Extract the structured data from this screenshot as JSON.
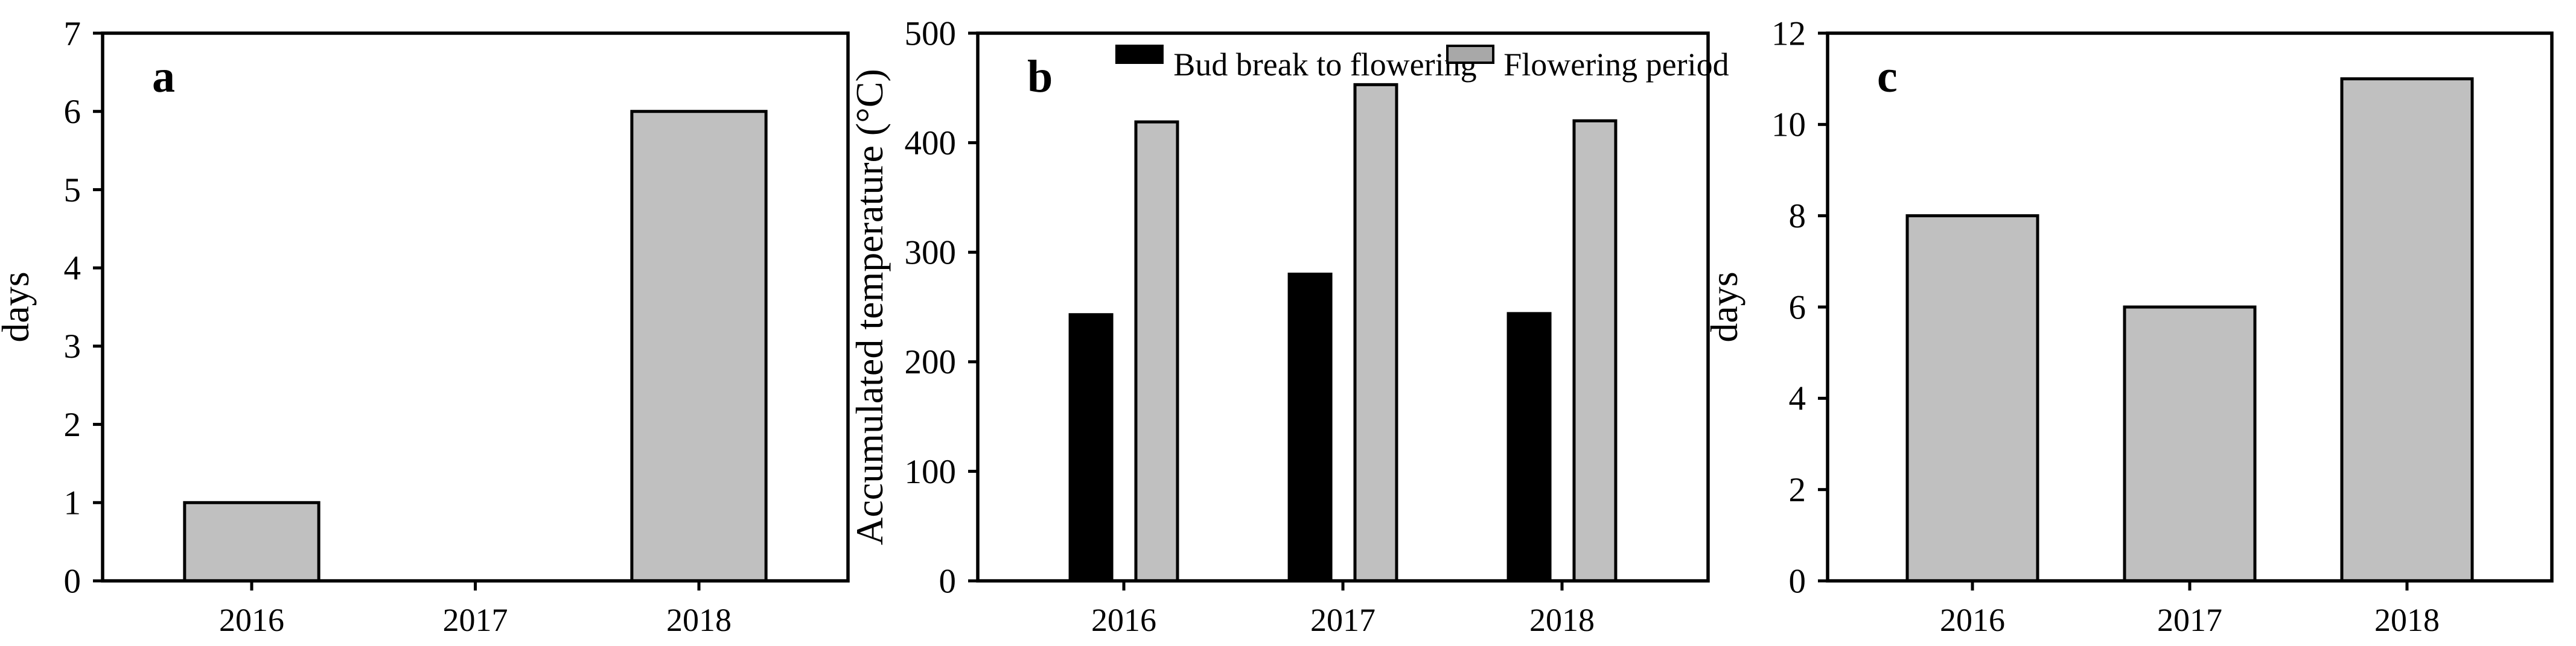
{
  "figure": {
    "background": "#ffffff",
    "frame_color": "#000000",
    "bar_gray": "#c0c0c0",
    "bar_black": "#000000",
    "legend_swatch_gray": "#a8a8a8"
  },
  "chart_data": [
    {
      "type": "bar",
      "panel_label": "a",
      "title": "",
      "xlabel": "",
      "ylabel": "days",
      "ylim": [
        0,
        7
      ],
      "ytick_step": 1,
      "grid": false,
      "categories": [
        "2016",
        "2017",
        "2018"
      ],
      "values": [
        1,
        0,
        6
      ],
      "bar_color": "#c0c0c0",
      "legend": null
    },
    {
      "type": "bar",
      "panel_label": "b",
      "title": "",
      "xlabel": "",
      "ylabel": "Accumulated temperature (°C)",
      "ylim": [
        0,
        500
      ],
      "ytick_step": 100,
      "grid": false,
      "categories": [
        "2016",
        "2017",
        "2018"
      ],
      "series": [
        {
          "name": "Bud break to flowering",
          "color": "#000000",
          "values": [
            243,
            280,
            244
          ]
        },
        {
          "name": "Flowering period",
          "color": "#c0c0c0",
          "values": [
            419,
            453,
            420
          ]
        }
      ],
      "legend_position": "top-inside"
    },
    {
      "type": "bar",
      "panel_label": "c",
      "title": "",
      "xlabel": "",
      "ylabel": "days",
      "ylim": [
        0,
        12
      ],
      "ytick_step": 2,
      "grid": false,
      "categories": [
        "2016",
        "2017",
        "2018"
      ],
      "values": [
        8,
        6,
        11
      ],
      "bar_color": "#c0c0c0",
      "legend": null
    }
  ]
}
